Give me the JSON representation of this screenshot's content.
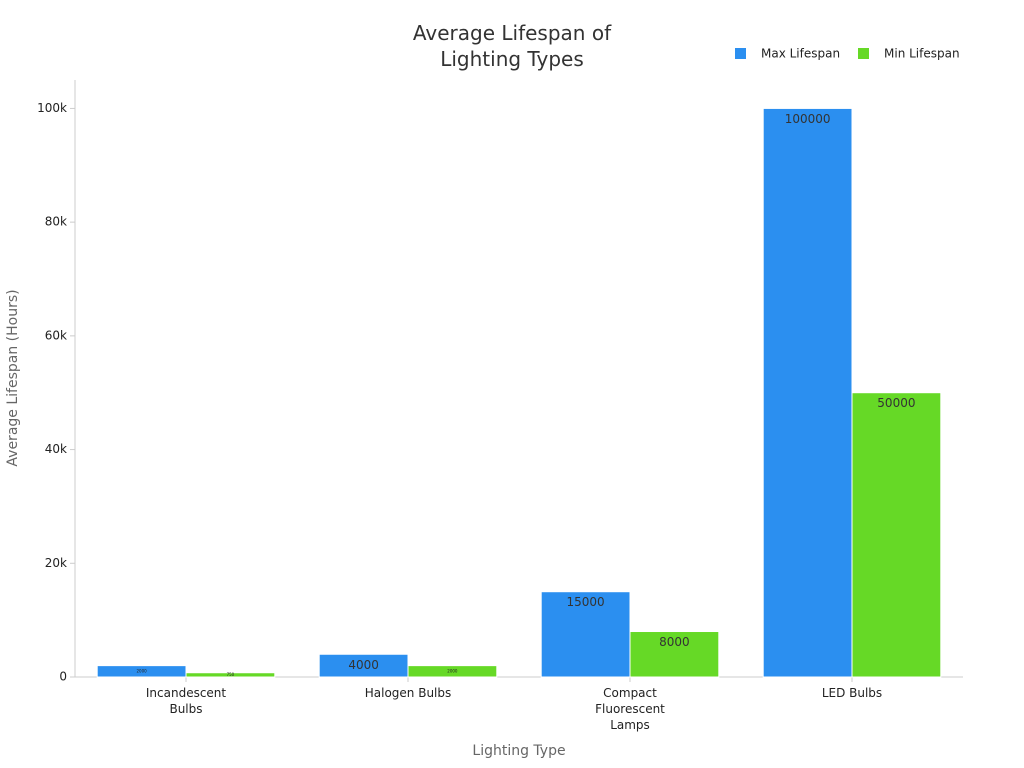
{
  "chart_data": {
    "type": "bar",
    "title": "Average Lifespan of Lighting Types",
    "x_label": "Lighting Type",
    "y_label": "Average Lifespan (Hours)",
    "categories": [
      "Incandescent Bulbs",
      "Halogen Bulbs",
      "Compact Fluorescent Lamps",
      "LED Bulbs"
    ],
    "series": [
      {
        "name": "Max Lifespan",
        "color": "#2b8ff0",
        "values": [
          2000,
          4000,
          15000,
          100000
        ]
      },
      {
        "name": "Min Lifespan",
        "color": "#66d926",
        "values": [
          750,
          2000,
          8000,
          50000
        ]
      }
    ],
    "ylim": [
      0,
      105000
    ],
    "yticks": [
      0,
      {
        "value": 20000,
        "label": "20k"
      },
      {
        "value": 40000,
        "label": "40k"
      },
      {
        "value": 60000,
        "label": "60k"
      },
      {
        "value": 80000,
        "label": "80k"
      },
      {
        "value": 100000,
        "label": "100k"
      }
    ],
    "legend": "top-right"
  }
}
